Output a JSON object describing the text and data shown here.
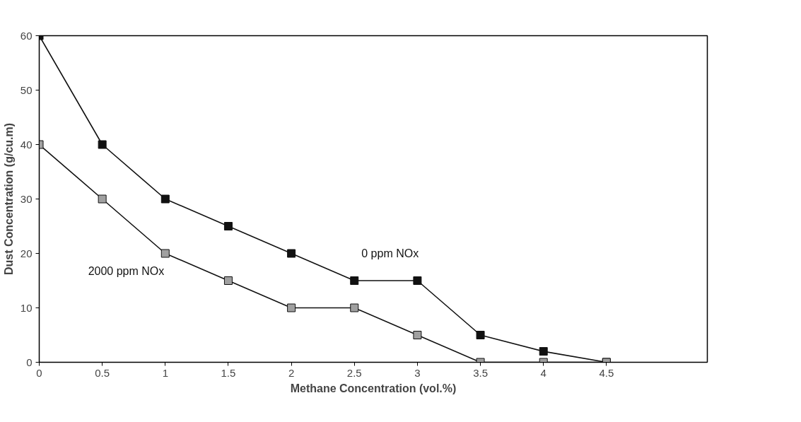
{
  "chart_data": {
    "type": "line",
    "xlabel": "Methane Concentration (vol.%)",
    "ylabel": "Dust Concentration (g/cu.m)",
    "x": [
      0,
      0.5,
      1,
      1.5,
      2,
      2.5,
      3,
      3.5,
      4,
      4.5
    ],
    "series": [
      {
        "name": "0 ppm NOx",
        "color": "#111111",
        "values": [
          60,
          40,
          30,
          25,
          20,
          15,
          15,
          5,
          2,
          0
        ]
      },
      {
        "name": "2000 ppm NOx",
        "color": "#a0a0a0",
        "values": [
          40,
          30,
          20,
          15,
          10,
          10,
          5,
          0,
          0,
          0
        ]
      }
    ],
    "xlim": [
      0,
      5.3
    ],
    "xticks": [
      0,
      0.5,
      1,
      1.5,
      2,
      2.5,
      3,
      3.5,
      4,
      4.5
    ],
    "ylim": [
      0,
      60
    ],
    "yticks": [
      0,
      10,
      20,
      30,
      40,
      50,
      60
    ],
    "grid": false,
    "marker": "square",
    "line_style": "solid"
  }
}
